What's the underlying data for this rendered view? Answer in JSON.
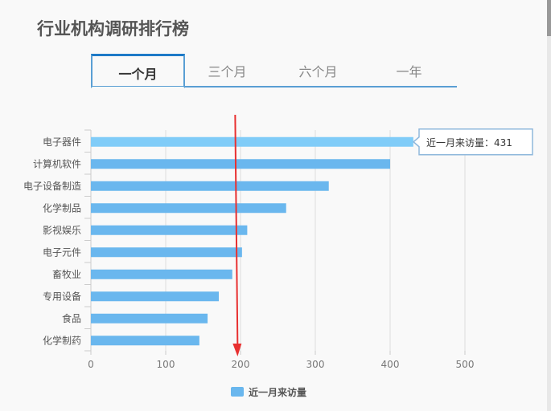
{
  "title": "行业机构调研排行榜",
  "tabs": [
    {
      "label": "一个月",
      "active": true
    },
    {
      "label": "三个月"
    },
    {
      "label": "六个月"
    },
    {
      "label": "一年"
    }
  ],
  "tooltip": {
    "label": "近一月来访量：431"
  },
  "colors": {
    "bar": "#6ab7ee",
    "bar_highlight": "#80ccf8",
    "arrow": "#e83030"
  },
  "chart_data": {
    "type": "bar",
    "orientation": "horizontal",
    "categories": [
      "电子器件",
      "计算机软件",
      "电子设备制造",
      "化学制品",
      "影视娱乐",
      "电子元件",
      "畜牧业",
      "专用设备",
      "食品",
      "化学制药"
    ],
    "series": [
      {
        "name": "近一月来访量",
        "values": [
          431,
          400,
          318,
          261,
          209,
          202,
          189,
          171,
          156,
          145
        ]
      }
    ],
    "xlim": [
      0,
      500
    ],
    "xticks": [
      0,
      100,
      200,
      300,
      400,
      500
    ],
    "grid": true,
    "legend": "bottom",
    "annotation": {
      "type": "vertical-arrow",
      "x": 195
    }
  }
}
